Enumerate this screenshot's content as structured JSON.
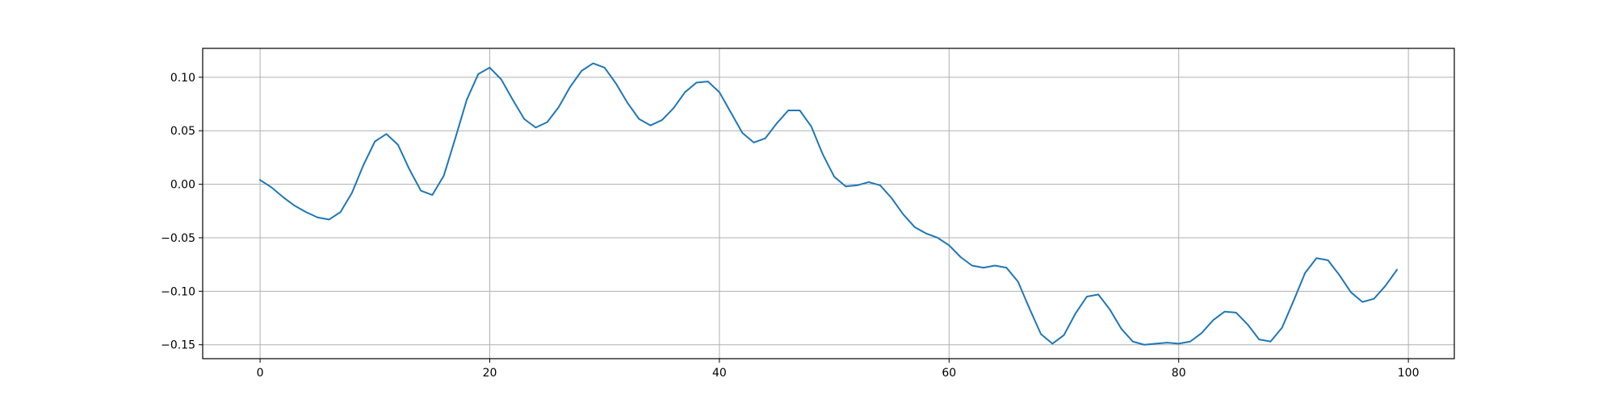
{
  "chart_data": {
    "type": "line",
    "title": "",
    "xlabel": "",
    "ylabel": "",
    "xlim": [
      -5,
      104
    ],
    "ylim": [
      -0.163,
      0.127
    ],
    "grid": true,
    "legend": "none",
    "x_ticks": [
      0,
      20,
      40,
      60,
      80,
      100
    ],
    "x_tick_labels": [
      "0",
      "20",
      "40",
      "60",
      "80",
      "100"
    ],
    "y_ticks": [
      0.1,
      0.05,
      0.0,
      -0.05,
      -0.1,
      -0.15
    ],
    "y_tick_labels": [
      "0.10",
      "0.05",
      "0.00",
      "−0.05",
      "−0.10",
      "−0.15"
    ],
    "series": [
      {
        "color": "#1f77b4",
        "x": [
          0,
          1,
          2,
          3,
          4,
          5,
          6,
          7,
          8,
          9,
          10,
          11,
          12,
          13,
          14,
          15,
          16,
          17,
          18,
          19,
          20,
          21,
          22,
          23,
          24,
          25,
          26,
          27,
          28,
          29,
          30,
          31,
          32,
          33,
          34,
          35,
          36,
          37,
          38,
          39,
          40,
          41,
          42,
          43,
          44,
          45,
          46,
          47,
          48,
          49,
          50,
          51,
          52,
          53,
          54,
          55,
          56,
          57,
          58,
          59,
          60,
          61,
          62,
          63,
          64,
          65,
          66,
          67,
          68,
          69,
          70,
          71,
          72,
          73,
          74,
          75,
          76,
          77,
          78,
          79,
          80,
          81,
          82,
          83,
          84,
          85,
          86,
          87,
          88,
          89,
          90,
          91,
          92,
          93,
          94,
          95,
          96,
          97,
          98,
          99
        ],
        "y": [
          0.004,
          -0.003,
          -0.012,
          -0.02,
          -0.026,
          -0.031,
          -0.033,
          -0.026,
          -0.008,
          0.018,
          0.04,
          0.047,
          0.037,
          0.014,
          -0.006,
          -0.01,
          0.008,
          0.043,
          0.079,
          0.103,
          0.109,
          0.098,
          0.079,
          0.061,
          0.053,
          0.058,
          0.072,
          0.091,
          0.106,
          0.113,
          0.109,
          0.094,
          0.076,
          0.061,
          0.055,
          0.06,
          0.071,
          0.086,
          0.095,
          0.096,
          0.086,
          0.067,
          0.048,
          0.039,
          0.043,
          0.057,
          0.069,
          0.069,
          0.054,
          0.028,
          0.007,
          -0.002,
          -0.001,
          0.002,
          -0.001,
          -0.013,
          -0.028,
          -0.04,
          -0.046,
          -0.05,
          -0.057,
          -0.068,
          -0.076,
          -0.078,
          -0.076,
          -0.078,
          -0.091,
          -0.116,
          -0.14,
          -0.149,
          -0.141,
          -0.121,
          -0.105,
          -0.103,
          -0.117,
          -0.135,
          -0.147,
          -0.15,
          -0.149,
          -0.148,
          -0.149,
          -0.147,
          -0.139,
          -0.127,
          -0.119,
          -0.12,
          -0.131,
          -0.145,
          -0.147,
          -0.134,
          -0.109,
          -0.083,
          -0.069,
          -0.071,
          -0.085,
          -0.101,
          -0.11,
          -0.107,
          -0.095,
          -0.08
        ]
      }
    ]
  }
}
